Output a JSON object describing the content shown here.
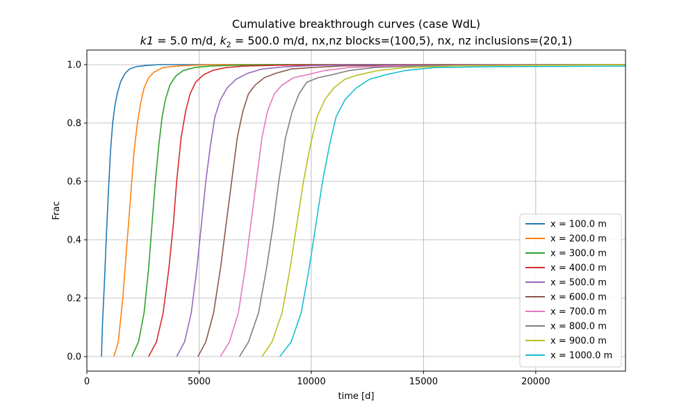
{
  "chart_data": {
    "type": "line",
    "title": "Cumulative breakthrough curves (case WdL)",
    "subtitle": "k1 = 5.0 m/d, k2 = 500.0 m/d, nx,nz blocks=(100,5), nx, nz inclusions=(20,1)",
    "subtitle_parts": {
      "k1": "k1",
      "k1_val": " = 5.0 m/d, ",
      "k2": "k",
      "k2_sub": "2",
      "k2_val": " = 500.0 m/d, ",
      "rest": "nx,nz blocks=(100,5), nx, nz inclusions=(20,1)"
    },
    "xlabel": "time [d]",
    "ylabel": "Frac",
    "xlim": [
      0,
      24000
    ],
    "ylim": [
      -0.05,
      1.05
    ],
    "xticks": [
      0,
      5000,
      10000,
      15000,
      20000
    ],
    "xtick_labels": [
      "0",
      "5000",
      "10000",
      "15000",
      "20000"
    ],
    "yticks": [
      0.0,
      0.2,
      0.4,
      0.6,
      0.8,
      1.0
    ],
    "ytick_labels": [
      "0.0",
      "0.2",
      "0.4",
      "0.6",
      "0.8",
      "1.0"
    ],
    "grid": true,
    "legend_position": "lower-right",
    "series": [
      {
        "name": "x = 100.0 m",
        "color": "#1f77b4",
        "x": [
          650,
          700,
          780,
          860,
          950,
          1050,
          1150,
          1250,
          1350,
          1500,
          1700,
          1900,
          2200,
          2600,
          3200
        ],
        "y": [
          0.0,
          0.12,
          0.25,
          0.4,
          0.55,
          0.7,
          0.8,
          0.86,
          0.9,
          0.94,
          0.97,
          0.985,
          0.993,
          0.997,
          1.0
        ]
      },
      {
        "name": "x = 200.0 m",
        "color": "#ff7f0e",
        "x": [
          1200,
          1400,
          1600,
          1750,
          1900,
          2000,
          2100,
          2250,
          2400,
          2550,
          2750,
          3000,
          3400,
          4000,
          4800,
          5900
        ],
        "y": [
          0.0,
          0.05,
          0.2,
          0.35,
          0.5,
          0.6,
          0.7,
          0.8,
          0.87,
          0.92,
          0.955,
          0.975,
          0.99,
          0.995,
          0.998,
          1.0
        ]
      },
      {
        "name": "x = 300.0 m",
        "color": "#2ca02c",
        "x": [
          2000,
          2300,
          2550,
          2750,
          2900,
          3050,
          3200,
          3350,
          3500,
          3700,
          3950,
          4300,
          4800,
          5500,
          6500,
          8400
        ],
        "y": [
          0.0,
          0.05,
          0.15,
          0.3,
          0.45,
          0.6,
          0.72,
          0.82,
          0.88,
          0.93,
          0.96,
          0.98,
          0.99,
          0.995,
          0.998,
          1.0
        ]
      },
      {
        "name": "x = 400.0 m",
        "color": "#d62728",
        "x": [
          2750,
          3100,
          3400,
          3650,
          3850,
          4000,
          4200,
          4400,
          4600,
          4850,
          5200,
          5600,
          6200,
          7000,
          8500,
          12000
        ],
        "y": [
          0.0,
          0.05,
          0.15,
          0.3,
          0.45,
          0.6,
          0.75,
          0.84,
          0.9,
          0.94,
          0.965,
          0.98,
          0.99,
          0.995,
          0.998,
          1.0
        ]
      },
      {
        "name": "x = 500.0 m",
        "color": "#9467bd",
        "x": [
          4000,
          4350,
          4650,
          4900,
          5100,
          5300,
          5500,
          5700,
          5950,
          6250,
          6650,
          7150,
          7800,
          8700,
          10000,
          12300
        ],
        "y": [
          0.0,
          0.05,
          0.15,
          0.3,
          0.45,
          0.6,
          0.72,
          0.82,
          0.88,
          0.92,
          0.95,
          0.97,
          0.985,
          0.992,
          0.997,
          1.0
        ]
      },
      {
        "name": "x = 600.0 m",
        "color": "#8c564b",
        "x": [
          4950,
          5300,
          5650,
          5950,
          6200,
          6450,
          6700,
          6950,
          7200,
          7500,
          7900,
          8400,
          9100,
          10000,
          11500,
          16300
        ],
        "y": [
          0.0,
          0.05,
          0.15,
          0.3,
          0.45,
          0.6,
          0.75,
          0.84,
          0.9,
          0.93,
          0.955,
          0.97,
          0.985,
          0.99,
          0.996,
          1.0
        ]
      },
      {
        "name": "x = 700.0 m",
        "color": "#e377c2",
        "x": [
          5950,
          6350,
          6750,
          7050,
          7300,
          7550,
          7800,
          8050,
          8350,
          8700,
          9200,
          9800,
          10600,
          11700,
          13500,
          18800
        ],
        "y": [
          0.0,
          0.05,
          0.15,
          0.3,
          0.45,
          0.6,
          0.75,
          0.84,
          0.9,
          0.93,
          0.955,
          0.965,
          0.98,
          0.99,
          0.996,
          1.0
        ]
      },
      {
        "name": "x = 800.0 m",
        "color": "#7f7f7f",
        "x": [
          6800,
          7200,
          7650,
          8000,
          8300,
          8550,
          8850,
          9150,
          9450,
          9800,
          10300,
          10900,
          11700,
          12800,
          14800,
          21500
        ],
        "y": [
          0.0,
          0.05,
          0.15,
          0.3,
          0.45,
          0.6,
          0.75,
          0.84,
          0.9,
          0.94,
          0.955,
          0.965,
          0.98,
          0.99,
          0.996,
          1.0
        ]
      },
      {
        "name": "x = 900.0 m",
        "color": "#bcbd22",
        "x": [
          7800,
          8250,
          8700,
          9050,
          9350,
          9650,
          9950,
          10250,
          10600,
          11000,
          11500,
          12100,
          13000,
          14200,
          16500,
          24000
        ],
        "y": [
          0.0,
          0.05,
          0.15,
          0.3,
          0.45,
          0.6,
          0.72,
          0.82,
          0.88,
          0.92,
          0.95,
          0.965,
          0.98,
          0.99,
          0.996,
          1.0
        ]
      },
      {
        "name": "x = 1000.0 m",
        "color": "#17becf",
        "x": [
          8600,
          9100,
          9550,
          9900,
          10200,
          10500,
          10800,
          11100,
          11500,
          12000,
          12600,
          13300,
          14200,
          15500,
          18000,
          24000
        ],
        "y": [
          0.0,
          0.05,
          0.15,
          0.3,
          0.45,
          0.6,
          0.72,
          0.82,
          0.88,
          0.92,
          0.95,
          0.965,
          0.98,
          0.99,
          0.993,
          0.995
        ]
      }
    ]
  }
}
